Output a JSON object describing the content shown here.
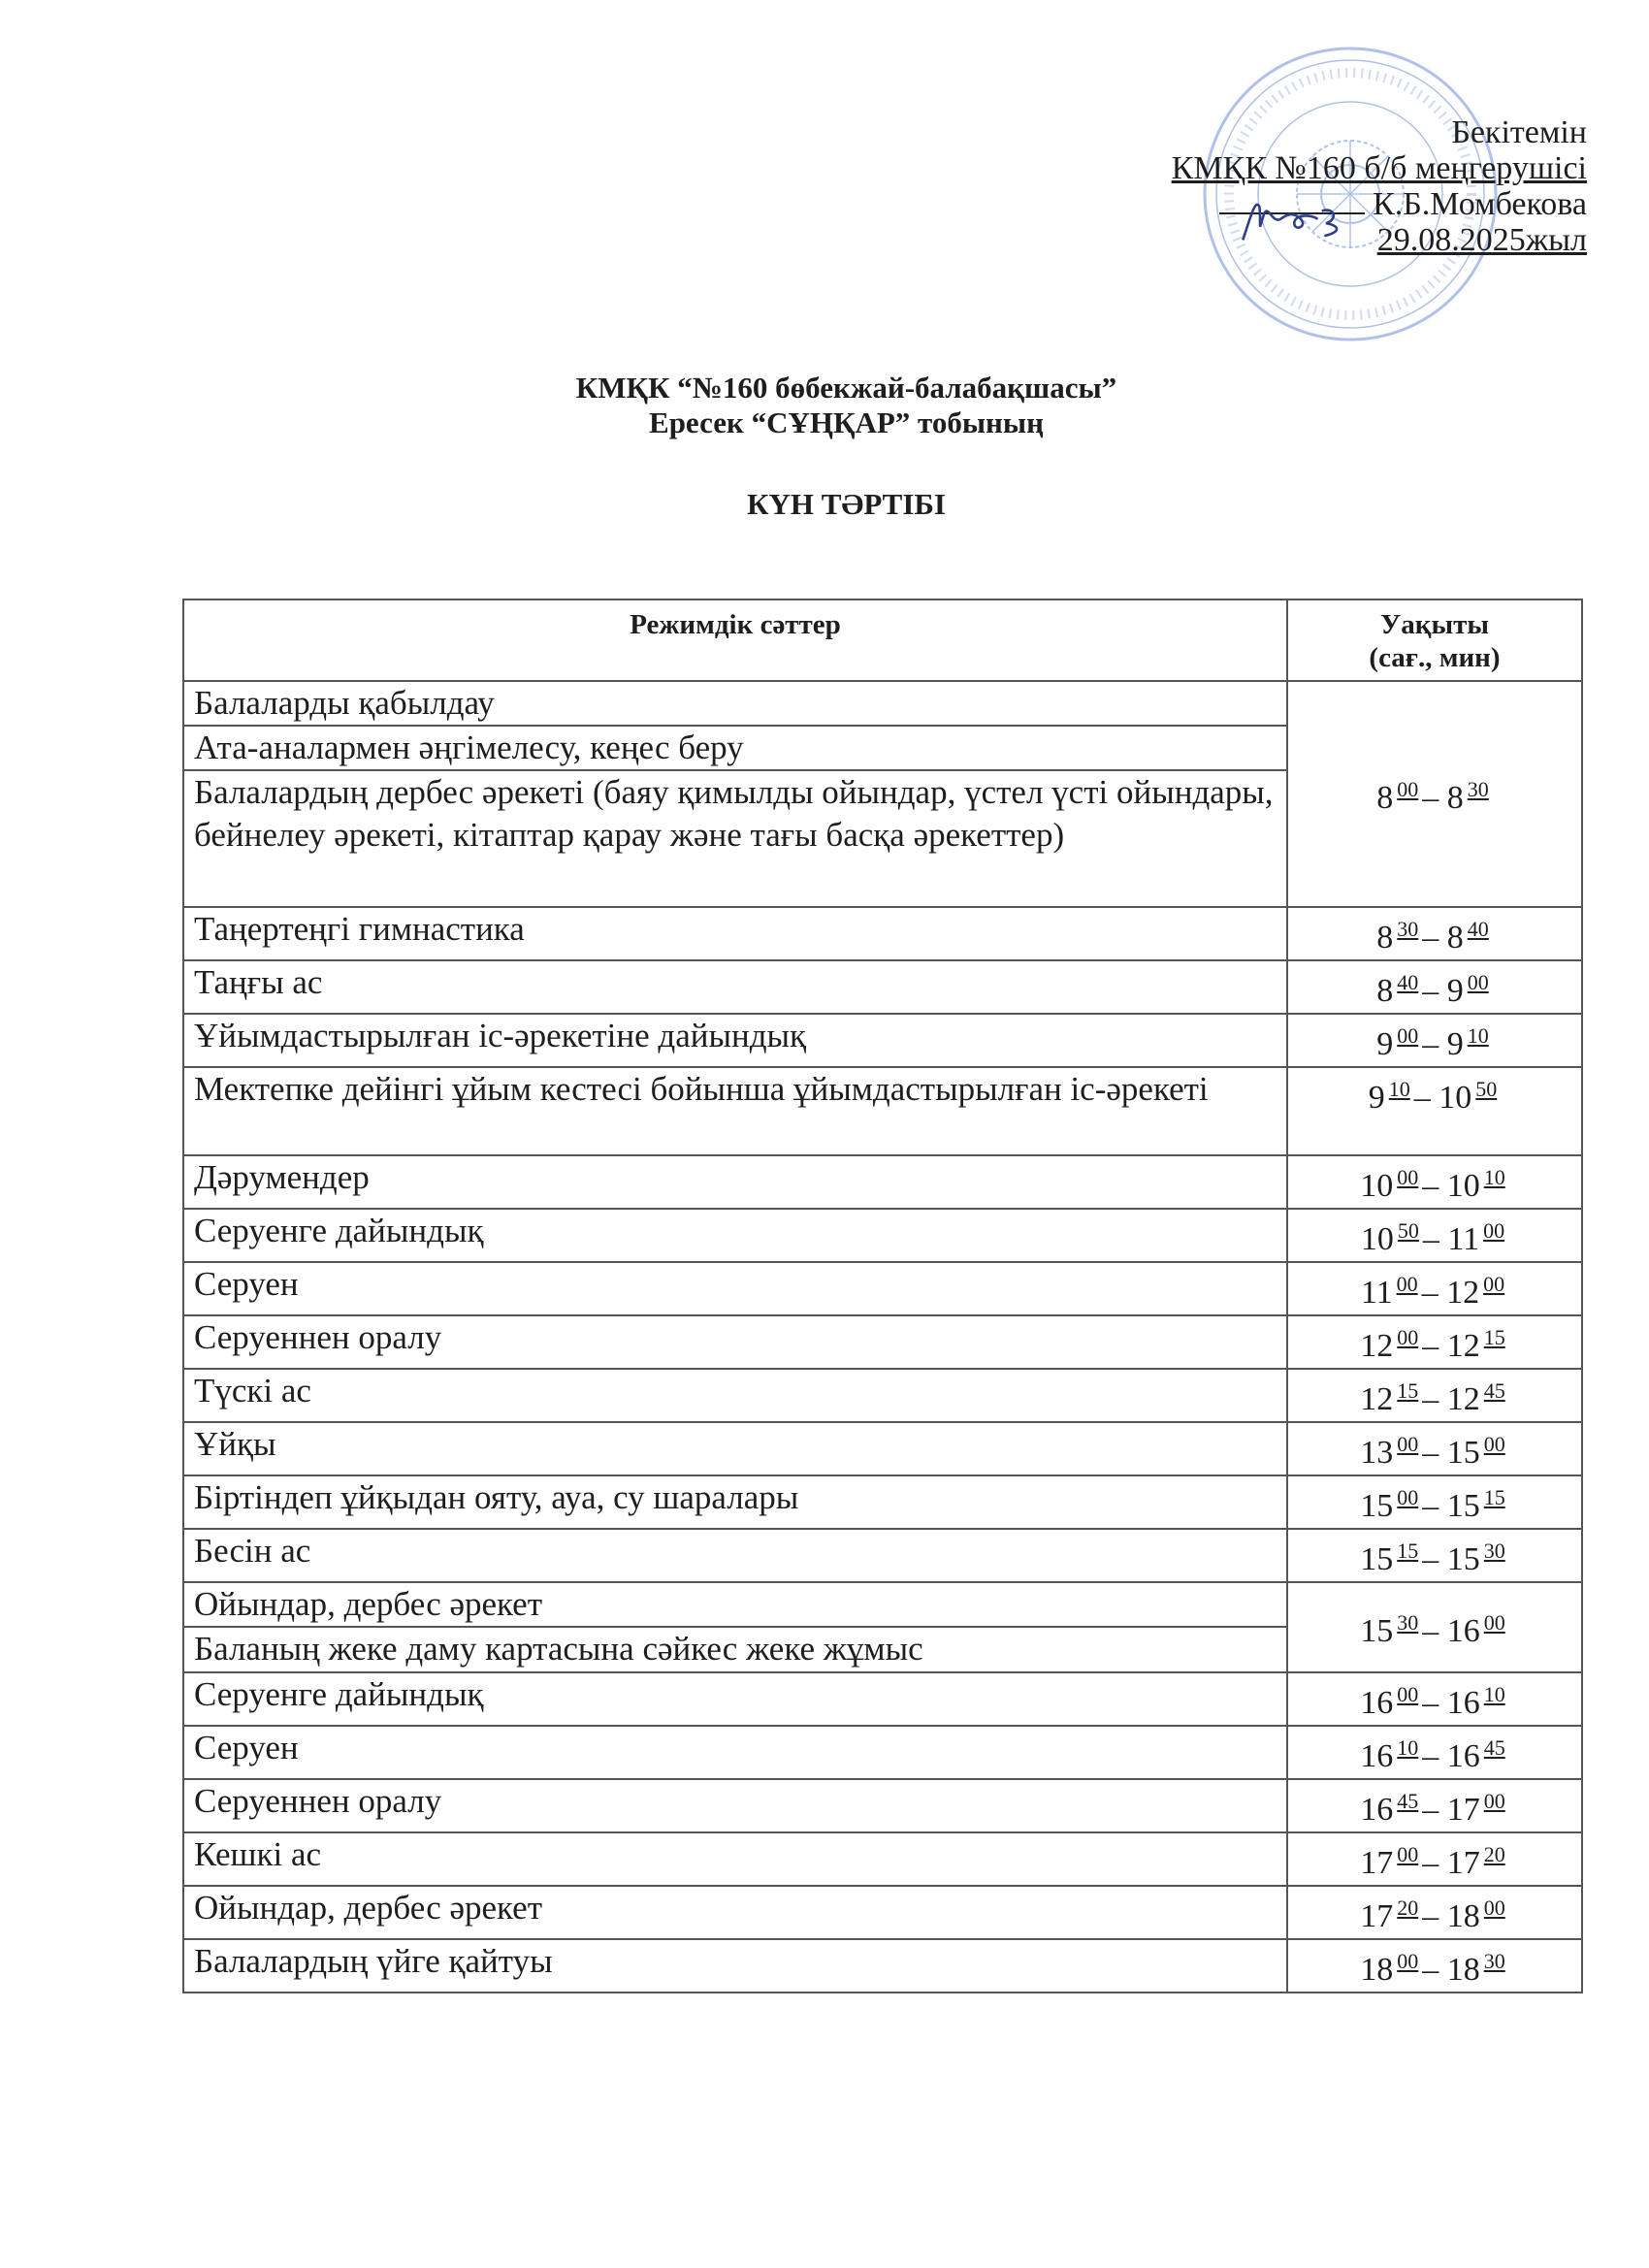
{
  "approval": {
    "line1": "Бекітемін",
    "line2": "КМҚК №160 б/б меңгерушісі",
    "line3": "К.Б.Момбекова",
    "line4": "29.08.2025жыл"
  },
  "stamp": {
    "text_outer": "АЛМАТЫ ҚАЛАСЫ БАСҚАРМАСЫНЫҢ «№ 160 БӨБЕКЖАЙ-БАЛАБАҚШАСЫ» МЕМЛЕКЕТТІК ҚАЗЫНАЛЫҚ КОММУНАЛДЫҚ КӘСІПОРНЫ",
    "bin": "БСН 090340002480...",
    "color": "#6f8fd8"
  },
  "header": {
    "title_line1": "КМҚК “№160 бөбекжай-балабақшасы”",
    "title_line2": "Ересек  “СҰҢҚАР”  тобының",
    "doc_title": "КҮН ТӘРТІБІ"
  },
  "table": {
    "col_activity": "Режимдік сәттер",
    "col_time_line1": "Уақыты",
    "col_time_line2": "(сағ., мин)",
    "rows": [
      {
        "activity": "Балаларды қабылдау",
        "time": {
          "h1": "8",
          "m1": "00",
          "h2": "8",
          "m2": "30"
        },
        "span": 3
      },
      {
        "activity": "Ата-аналармен әңгімелесу, кеңес беру"
      },
      {
        "activity": "Балалардың дербес әрекеті (баяу қимылды ойындар, үстел үсті ойындары, бейнелеу әрекеті, кітаптар қарау және тағы басқа әрекеттер)"
      },
      {
        "activity": "Таңертеңгі гимнастика",
        "time": {
          "h1": "8",
          "m1": "30",
          "h2": "8",
          "m2": "40"
        }
      },
      {
        "activity": "Таңғы ас",
        "time": {
          "h1": "8",
          "m1": "40",
          "h2": "9",
          "m2": "00"
        }
      },
      {
        "activity": "Ұйымдастырылған іс-әрекетіне дайындық",
        "time": {
          "h1": "9",
          "m1": "00",
          "h2": "9",
          "m2": "10"
        }
      },
      {
        "activity": "Мектепке дейінгі ұйым кестесі  бойынша  ұйымдастырылған іс-әрекеті",
        "time": {
          "h1": "9",
          "m1": "10",
          "h2": "10",
          "m2": "50"
        }
      },
      {
        "activity": "Дәрумендер",
        "time": {
          "h1": "10",
          "m1": "00",
          "h2": "10",
          "m2": "10"
        }
      },
      {
        "activity": "Серуенге дайындық",
        "time": {
          "h1": "10",
          "m1": "50",
          "h2": "11",
          "m2": "00"
        }
      },
      {
        "activity": "Серуен",
        "time": {
          "h1": "11",
          "m1": "00",
          "h2": "12",
          "m2": "00"
        }
      },
      {
        "activity": "Серуеннен оралу",
        "time": {
          "h1": "12",
          "m1": "00",
          "h2": "12",
          "m2": "15"
        }
      },
      {
        "activity": "Түскі ас",
        "time": {
          "h1": "12",
          "m1": "15",
          "h2": "12",
          "m2": "45"
        }
      },
      {
        "activity": "Ұйқы",
        "time": {
          "h1": "13",
          "m1": "00",
          "h2": "15",
          "m2": "00"
        }
      },
      {
        "activity": "Біртіндеп ұйқыдан ояту, ауа, су шаралары",
        "time": {
          "h1": "15",
          "m1": "00",
          "h2": "15",
          "m2": "15"
        }
      },
      {
        "activity": "Бесін ас",
        "time": {
          "h1": "15",
          "m1": "15",
          "h2": "15",
          "m2": "30"
        }
      },
      {
        "activity": "Ойындар, дербес әрекет",
        "time": {
          "h1": "15",
          "m1": "30",
          "h2": "16",
          "m2": "00"
        },
        "span": 2
      },
      {
        "activity": "Баланың жеке даму картасына сәйкес жеке жұмыс"
      },
      {
        "activity": "Серуенге дайындық",
        "time": {
          "h1": "16",
          "m1": "00",
          "h2": "16",
          "m2": "10"
        }
      },
      {
        "activity": "Серуен",
        "time": {
          "h1": "16",
          "m1": "10",
          "h2": "16",
          "m2": "45"
        }
      },
      {
        "activity": "Серуеннен оралу",
        "time": {
          "h1": "16",
          "m1": "45",
          "h2": "17",
          "m2": "00"
        }
      },
      {
        "activity": "Кешкі ас",
        "time": {
          "h1": "17",
          "m1": "00",
          "h2": "17",
          "m2": "20"
        }
      },
      {
        "activity": "Ойындар, дербес әрекет",
        "time": {
          "h1": "17",
          "m1": "20",
          "h2": "18",
          "m2": "00"
        }
      },
      {
        "activity": "Балалардың үйге қайтуы",
        "time": {
          "h1": "18",
          "m1": "00",
          "h2": "18",
          "m2": "30"
        }
      }
    ]
  }
}
